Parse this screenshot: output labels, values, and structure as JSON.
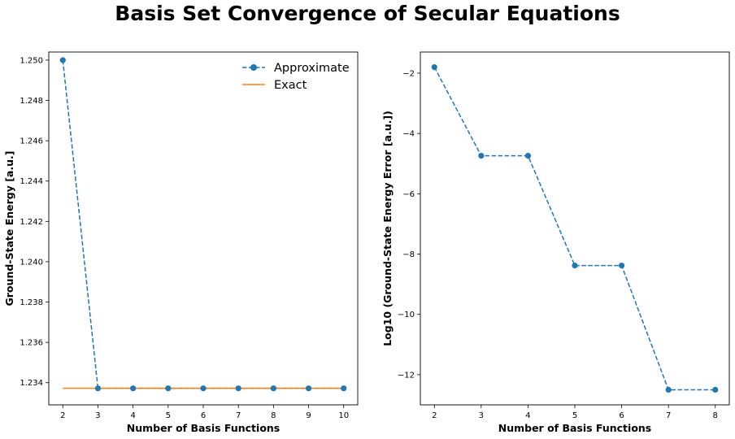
{
  "figure": {
    "title": "Basis Set Convergence of Secular Equations"
  },
  "colors": {
    "approximate": "#1f77b4",
    "exact": "#ff7f0e",
    "axes": "#000000",
    "background": "#ffffff"
  },
  "chart_data": [
    {
      "type": "line",
      "xlabel": "Number of Basis Functions",
      "ylabel": "Ground-State Energy [a.u.]",
      "x": [
        2,
        3,
        4,
        5,
        6,
        7,
        8,
        9,
        10
      ],
      "xticks": [
        "2",
        "3",
        "4",
        "5",
        "6",
        "7",
        "8",
        "9",
        "10"
      ],
      "xlim": [
        1.6,
        10.4
      ],
      "ylim": [
        1.2329,
        1.2504
      ],
      "yticks": [
        "1.234",
        "1.236",
        "1.238",
        "1.240",
        "1.242",
        "1.244",
        "1.246",
        "1.248",
        "1.250"
      ],
      "ytick_values": [
        1.234,
        1.236,
        1.238,
        1.24,
        1.242,
        1.244,
        1.246,
        1.248,
        1.25
      ],
      "legend": "top-right",
      "grid": false,
      "series": [
        {
          "name": "Approximate",
          "style": "dashed-markers",
          "color": "#1f77b4",
          "values": [
            1.25,
            1.23372,
            1.23372,
            1.23372,
            1.23372,
            1.23372,
            1.23372,
            1.23372,
            1.23372
          ]
        },
        {
          "name": "Exact",
          "style": "solid",
          "color": "#ff7f0e",
          "values": [
            1.23372,
            1.23372,
            1.23372,
            1.23372,
            1.23372,
            1.23372,
            1.23372,
            1.23372,
            1.23372
          ]
        }
      ]
    },
    {
      "type": "line",
      "xlabel": "Number of Basis Functions",
      "ylabel": "Log10 (Ground-State Energy Error [a.u.])",
      "x": [
        2,
        3,
        4,
        5,
        6,
        7,
        8
      ],
      "xticks": [
        "2",
        "3",
        "4",
        "5",
        "6",
        "7",
        "8"
      ],
      "xlim": [
        1.7,
        8.3
      ],
      "ylim": [
        -13.0,
        -1.3
      ],
      "yticks": [
        "−2",
        "−4",
        "−6",
        "−8",
        "−10",
        "−12"
      ],
      "ytick_values": [
        -2,
        -4,
        -6,
        -8,
        -10,
        -12
      ],
      "grid": false,
      "series": [
        {
          "style": "dashed-markers",
          "color": "#1f77b4",
          "values": [
            -1.8,
            -4.74,
            -4.74,
            -8.38,
            -8.38,
            -12.5,
            -12.5
          ]
        }
      ]
    }
  ]
}
